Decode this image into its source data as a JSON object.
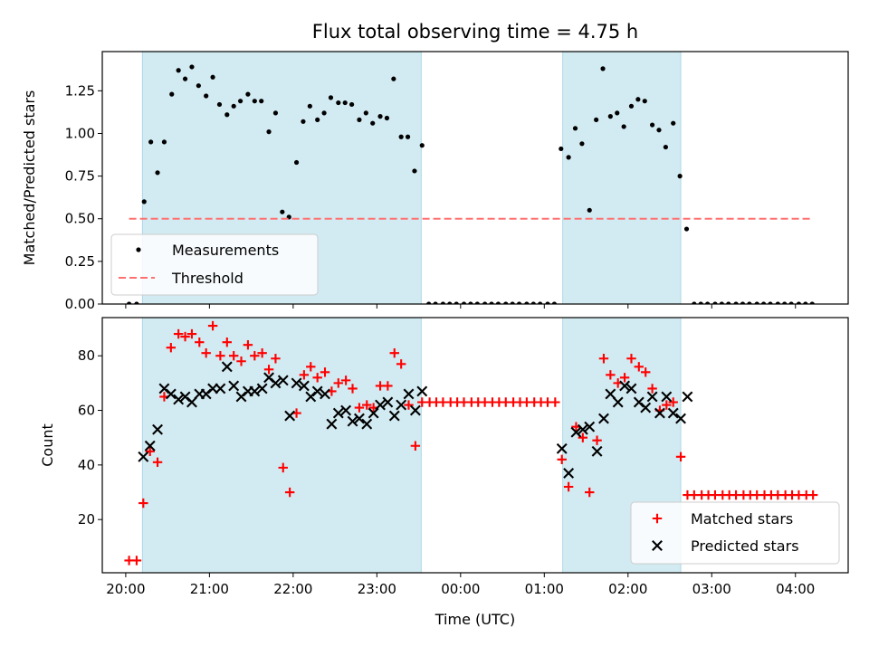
{
  "chart_data": [
    {
      "type": "scatter",
      "title": "Flux total observing time = 4.75 h",
      "xlabel": "",
      "ylabel": "Matched/Predicted stars",
      "ylim": [
        0,
        1.48
      ],
      "yticks": [
        "0.00",
        "0.25",
        "0.50",
        "0.75",
        "1.00",
        "1.25"
      ],
      "yticks_values": [
        0,
        0.25,
        0.5,
        0.75,
        1.0,
        1.25
      ],
      "x_axis": "time (UTC), decimal hours continuing past midnight",
      "xlim": [
        19.72,
        28.63
      ],
      "observing_windows": [
        [
          20.2,
          23.53
        ],
        [
          25.22,
          26.63
        ]
      ],
      "window_color": "#add8e6",
      "legend": {
        "placement": "lower-left",
        "entries": [
          "Measurements",
          "Threshold"
        ]
      },
      "series": [
        {
          "name": "Measurements",
          "marker": "dot",
          "color": "#000000",
          "x": [
            20.04,
            20.13,
            20.22,
            20.3,
            20.38,
            20.46,
            20.55,
            20.63,
            20.71,
            20.79,
            20.87,
            20.96,
            21.04,
            21.12,
            21.21,
            21.29,
            21.37,
            21.46,
            21.54,
            21.62,
            21.71,
            21.79,
            21.87,
            21.95,
            22.04,
            22.12,
            22.2,
            22.29,
            22.37,
            22.45,
            22.54,
            22.62,
            22.7,
            22.79,
            22.87,
            22.95,
            23.04,
            23.12,
            23.2,
            23.29,
            23.37,
            23.45,
            23.54,
            23.62,
            23.7,
            23.79,
            23.87,
            23.95,
            24.04,
            24.12,
            24.2,
            24.29,
            24.37,
            24.45,
            24.54,
            24.62,
            24.7,
            24.79,
            24.87,
            24.95,
            25.04,
            25.12,
            25.2,
            25.29,
            25.37,
            25.45,
            25.54,
            25.62,
            25.7,
            25.79,
            25.87,
            25.95,
            26.04,
            26.12,
            26.2,
            26.29,
            26.37,
            26.45,
            26.54,
            26.62,
            26.7,
            26.79,
            26.87,
            26.95,
            27.04,
            27.12,
            27.2,
            27.29,
            27.37,
            27.45,
            27.54,
            27.62,
            27.7,
            27.79,
            27.87,
            27.95,
            28.04,
            28.12,
            28.2
          ],
          "y": [
            0.0,
            0.0,
            0.6,
            0.95,
            0.77,
            0.95,
            1.23,
            1.37,
            1.32,
            1.39,
            1.28,
            1.22,
            1.33,
            1.17,
            1.11,
            1.16,
            1.19,
            1.23,
            1.19,
            1.19,
            1.01,
            1.12,
            0.54,
            0.51,
            0.83,
            1.07,
            1.16,
            1.08,
            1.12,
            1.21,
            1.18,
            1.18,
            1.17,
            1.08,
            1.12,
            1.06,
            1.1,
            1.09,
            1.32,
            0.98,
            0.98,
            0.78,
            0.93,
            0.0,
            0.0,
            0.0,
            0.0,
            0.0,
            0.0,
            0.0,
            0.0,
            0.0,
            0.0,
            0.0,
            0.0,
            0.0,
            0.0,
            0.0,
            0.0,
            0.0,
            0.0,
            0.0,
            0.91,
            0.86,
            1.03,
            0.94,
            0.55,
            1.08,
            1.38,
            1.1,
            1.12,
            1.04,
            1.16,
            1.2,
            1.19,
            1.05,
            1.02,
            0.92,
            1.06,
            0.75,
            0.44,
            0.0,
            0.0,
            0.0,
            0.0,
            0.0,
            0.0,
            0.0,
            0.0,
            0.0,
            0.0,
            0.0,
            0.0,
            0.0,
            0.0,
            0.0,
            0.0,
            0.0,
            0.0
          ]
        },
        {
          "name": "Threshold",
          "style": "dashed",
          "color": "#ff7070",
          "x": [
            20.04,
            28.2
          ],
          "y": [
            0.5,
            0.5
          ]
        }
      ]
    },
    {
      "type": "scatter",
      "title": "",
      "xlabel": "Time (UTC)",
      "ylabel": "Count",
      "ylim": [
        0.5,
        94
      ],
      "yticks": [
        "20",
        "40",
        "60",
        "80"
      ],
      "yticks_values": [
        20,
        40,
        60,
        80
      ],
      "xlim": [
        19.72,
        28.63
      ],
      "xticks": [
        "20:00",
        "21:00",
        "22:00",
        "23:00",
        "00:00",
        "01:00",
        "02:00",
        "03:00",
        "04:00"
      ],
      "xticks_values": [
        20,
        21,
        22,
        23,
        24,
        25,
        26,
        27,
        28
      ],
      "observing_windows": [
        [
          20.2,
          23.53
        ],
        [
          25.22,
          26.63
        ]
      ],
      "window_color": "#add8e6",
      "legend": {
        "placement": "lower-right",
        "entries": [
          "Matched stars",
          "Predicted stars"
        ]
      },
      "series": [
        {
          "name": "Matched stars",
          "marker": "plus",
          "color": "#ff0000",
          "x": [
            20.04,
            20.13,
            20.21,
            20.29,
            20.38,
            20.46,
            20.54,
            20.63,
            20.71,
            20.79,
            20.88,
            20.96,
            21.04,
            21.13,
            21.21,
            21.29,
            21.38,
            21.46,
            21.54,
            21.63,
            21.71,
            21.79,
            21.88,
            21.96,
            22.04,
            22.13,
            22.21,
            22.29,
            22.38,
            22.46,
            22.54,
            22.63,
            22.71,
            22.79,
            22.88,
            22.96,
            23.04,
            23.13,
            23.21,
            23.29,
            23.38,
            23.46,
            23.54,
            23.63,
            23.71,
            23.79,
            23.88,
            23.96,
            24.04,
            24.13,
            24.21,
            24.29,
            24.38,
            24.46,
            24.54,
            24.63,
            24.71,
            24.79,
            24.88,
            24.96,
            25.04,
            25.13,
            25.21,
            25.29,
            25.38,
            25.46,
            25.54,
            25.63,
            25.71,
            25.79,
            25.88,
            25.96,
            26.04,
            26.13,
            26.21,
            26.29,
            26.38,
            26.46,
            26.54,
            26.63,
            26.71,
            26.79,
            26.88,
            26.96,
            27.04,
            27.13,
            27.21,
            27.29,
            27.38,
            27.46,
            27.54,
            27.63,
            27.71,
            27.79,
            27.88,
            27.96,
            28.04,
            28.13,
            28.21
          ],
          "y": [
            5,
            5,
            26,
            45,
            41,
            65,
            83,
            88,
            87,
            88,
            85,
            81,
            91,
            80,
            85,
            80,
            78,
            84,
            80,
            81,
            75,
            79,
            39,
            30,
            59,
            73,
            76,
            72,
            74,
            67,
            70,
            71,
            68,
            61,
            62,
            61,
            69,
            69,
            81,
            77,
            62,
            47,
            63,
            63,
            63,
            63,
            63,
            63,
            63,
            63,
            63,
            63,
            63,
            63,
            63,
            63,
            63,
            63,
            63,
            63,
            63,
            63,
            42,
            32,
            54,
            50,
            30,
            49,
            79,
            73,
            70,
            72,
            79,
            76,
            74,
            68,
            60,
            62,
            63,
            43,
            29,
            29,
            29,
            29,
            29,
            29,
            29,
            29,
            29,
            29,
            29,
            29,
            29,
            29,
            29,
            29,
            29,
            29,
            29
          ]
        },
        {
          "name": "Predicted stars",
          "marker": "x",
          "color": "#000000",
          "x": [
            20.21,
            20.29,
            20.38,
            20.46,
            20.54,
            20.63,
            20.71,
            20.79,
            20.88,
            20.96,
            21.04,
            21.13,
            21.21,
            21.29,
            21.38,
            21.46,
            21.54,
            21.63,
            21.71,
            21.79,
            21.88,
            21.96,
            22.04,
            22.13,
            22.21,
            22.29,
            22.38,
            22.46,
            22.54,
            22.63,
            22.71,
            22.79,
            22.88,
            22.96,
            23.04,
            23.13,
            23.21,
            23.29,
            23.38,
            23.46,
            23.54,
            25.21,
            25.29,
            25.38,
            25.46,
            25.54,
            25.63,
            25.71,
            25.79,
            25.88,
            25.96,
            26.04,
            26.13,
            26.21,
            26.29,
            26.38,
            26.46,
            26.54,
            26.63,
            26.71
          ],
          "y": [
            43,
            47,
            53,
            68,
            66,
            64,
            65,
            63,
            66,
            66,
            68,
            68,
            76,
            69,
            65,
            67,
            67,
            68,
            72,
            70,
            71,
            58,
            70,
            69,
            65,
            67,
            66,
            55,
            59,
            60,
            56,
            57,
            55,
            59,
            62,
            63,
            58,
            62,
            66,
            60,
            67,
            46,
            37,
            52,
            53,
            54,
            45,
            57,
            66,
            63,
            69,
            68,
            63,
            61,
            65,
            59,
            65,
            59,
            57,
            65
          ]
        }
      ]
    }
  ]
}
